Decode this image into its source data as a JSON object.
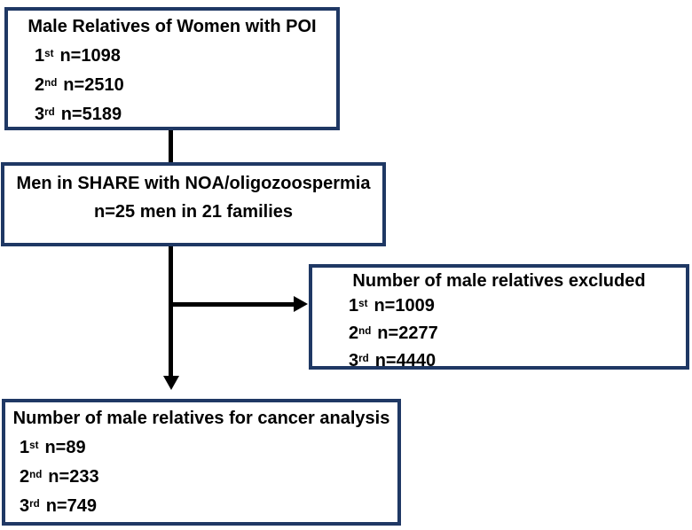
{
  "flowchart": {
    "colors": {
      "box_border": "#1f3864",
      "connector": "#000000",
      "text": "#000000",
      "background": "#ffffff"
    },
    "boxes": {
      "poi": {
        "title": "Male Relatives of Women with POI",
        "stats": [
          {
            "base": "1",
            "sup": "st",
            "value": "n=1098"
          },
          {
            "base": "2",
            "sup": "nd",
            "value": "n=2510"
          },
          {
            "base": "3",
            "sup": "rd",
            "value": "n=5189"
          }
        ]
      },
      "share": {
        "title": "Men in SHARE with NOA/oligozoospermia",
        "subtitle": "n=25 men in 21 families"
      },
      "excluded": {
        "title": "Number of male relatives excluded",
        "stats": [
          {
            "base": "1",
            "sup": "st",
            "value": "n=1009"
          },
          {
            "base": "2",
            "sup": "nd",
            "value": "n=2277"
          },
          {
            "base": "3",
            "sup": "rd",
            "value": "n=4440"
          }
        ]
      },
      "cancer": {
        "title": "Number of male relatives for cancer analysis",
        "stats": [
          {
            "base": "1",
            "sup": "st",
            "value": "n=89"
          },
          {
            "base": "2",
            "sup": "nd",
            "value": "n=233"
          },
          {
            "base": "3",
            "sup": "rd",
            "value": "n=749"
          }
        ]
      }
    }
  }
}
